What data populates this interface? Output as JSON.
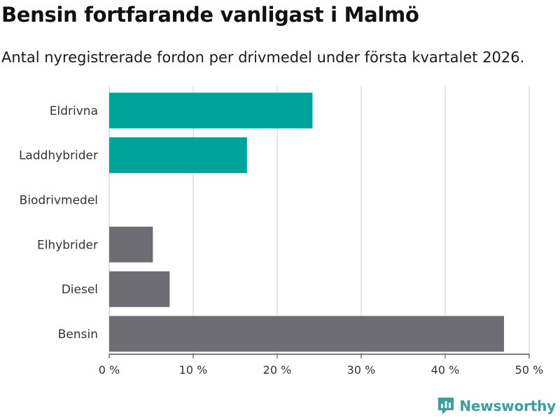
{
  "chart_data": {
    "type": "bar",
    "orientation": "horizontal",
    "title": "Bensin fortfarande vanligast i Malmö",
    "subtitle": "Antal nyregistrerade fordon per drivmedel under första kvartalet 2026.",
    "categories": [
      "Eldrivna",
      "Laddhybrider",
      "Biodrivmedel",
      "Elhybrider",
      "Diesel",
      "Bensin"
    ],
    "values": [
      24.2,
      16.4,
      0,
      5.2,
      7.2,
      47.0
    ],
    "bar_colors": [
      "#00a39a",
      "#00a39a",
      "#00a39a",
      "#6e6d73",
      "#6e6d73",
      "#6e6d73"
    ],
    "xlim": [
      0,
      50
    ],
    "xticks": [
      0,
      10,
      20,
      30,
      40,
      50
    ],
    "xtick_labels": [
      "0 %",
      "10 %",
      "20 %",
      "30 %",
      "40 %",
      "50 %"
    ],
    "grid": true,
    "xlabel": "",
    "ylabel": ""
  },
  "brand": {
    "name": "Newsworthy",
    "color": "#3d9da0"
  }
}
